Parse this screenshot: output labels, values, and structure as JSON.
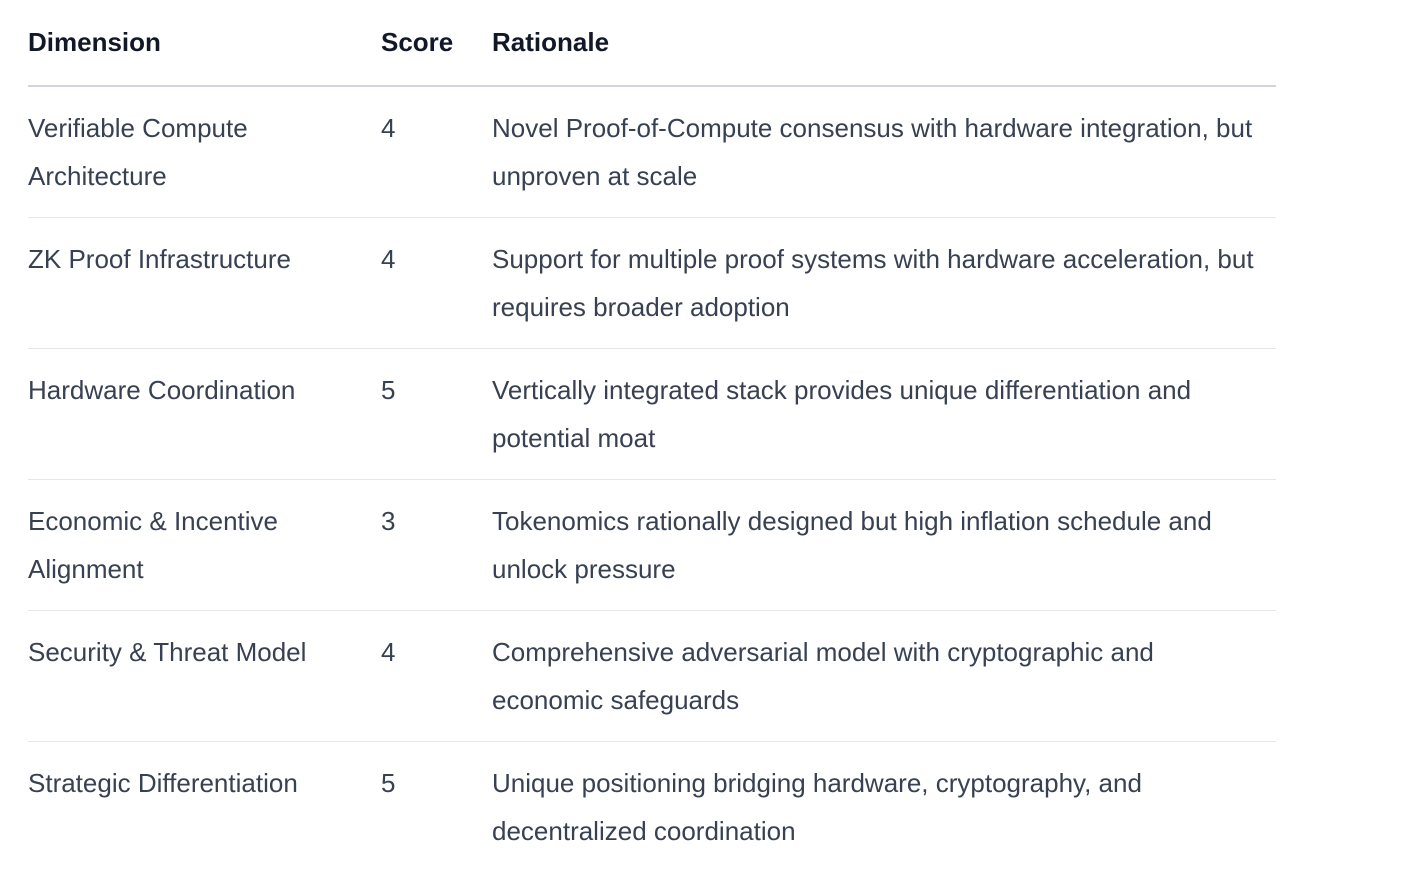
{
  "table": {
    "headers": [
      "Dimension",
      "Score",
      "Rationale"
    ],
    "rows": [
      {
        "dimension": "Verifiable Compute Architecture",
        "score": "4",
        "rationale": "Novel Proof-of-Compute consensus with hardware integration, but unproven at scale"
      },
      {
        "dimension": "ZK Proof Infrastructure",
        "score": "4",
        "rationale": "Support for multiple proof systems with hardware acceleration, but requires broader adoption"
      },
      {
        "dimension": "Hardware Coordination",
        "score": "5",
        "rationale": "Vertically integrated stack provides unique differentiation and potential moat"
      },
      {
        "dimension": "Economic & Incentive Alignment",
        "score": "3",
        "rationale": "Tokenomics rationally designed but high inflation schedule and unlock pressure"
      },
      {
        "dimension": "Security & Threat Model",
        "score": "4",
        "rationale": "Comprehensive adversarial model with cryptographic and economic safeguards"
      },
      {
        "dimension": "Strategic Differentiation",
        "score": "5",
        "rationale": "Unique positioning bridging hardware, cryptography, and decentralized coordination"
      }
    ]
  }
}
